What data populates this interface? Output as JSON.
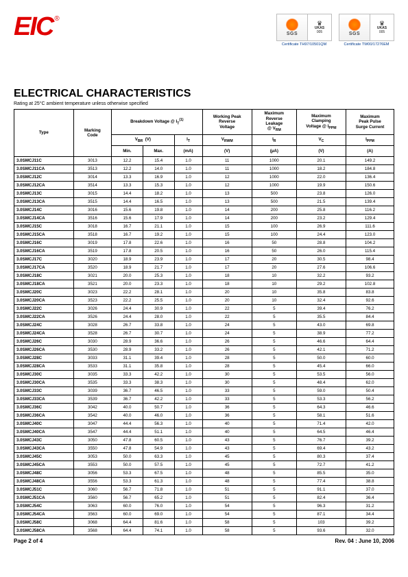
{
  "logo_text": "EIC",
  "cert1_label": "Certificate  TH97/10501QM",
  "cert2_label": "Certificate  TW00/17276EM",
  "sgs": "SGS",
  "ukas_brand": "UKAS",
  "ukas_sub": "MANAGEMENT SYSTEMS",
  "ukas_num": "005",
  "title": "ELECTRICAL CHARACTERISTICS",
  "subtitle": "Rating at 25°C ambient temperature unless otherwise specified",
  "headers": {
    "type": "Type",
    "marking": "Marking\nCode",
    "breakdown": "Breakdown Voltage @  I",
    "breakdown_sup": "(1)",
    "t_sub": "T",
    "vbr": "V",
    "vbr_sub": "BR",
    "vbr_unit": "(V)",
    "it": "I",
    "it_sub": "T",
    "min": "Min.",
    "max": "Max.",
    "ma": "(mA)",
    "wprv": "Working Peak\nReverse\nVoltage",
    "vrwm": "V",
    "vrwm_sub": "RWM",
    "v_unit": "(V)",
    "mrl": "Maximum\nReverse\nLeakage\n@ V",
    "mrl_sub": "RM",
    "ir": "I",
    "ir_sub": "R",
    "ua": "(µA)",
    "mcv": "Maximum\nClamping\nVoltage @ I",
    "mcv_sub": "PPM",
    "vc": "V",
    "vc_sub": "C",
    "mpps": "Maximum\nPeak Pulse\nSurge Current",
    "ippm": "I",
    "ippm_sub": "PPM",
    "a_unit": "(A)"
  },
  "rows": [
    {
      "type": "3.0SMCJ11C",
      "code": "3013",
      "min": "12.2",
      "max": "15.4",
      "it": "1.0",
      "vrwm": "11",
      "ir": "1000",
      "vc": "20.1",
      "ippm": "149.2"
    },
    {
      "type": "3.0SMCJ11CA",
      "code": "3513",
      "min": "12.2",
      "max": "14.0",
      "it": "1.0",
      "vrwm": "11",
      "ir": "1000",
      "vc": "18.2",
      "ippm": "184.8"
    },
    {
      "type": "3.0SMCJ12C",
      "code": "3014",
      "min": "13.3",
      "max": "16.9",
      "it": "1.0",
      "vrwm": "12",
      "ir": "1000",
      "vc": "22.0",
      "ippm": "136.4"
    },
    {
      "type": "3.0SMCJ12CA",
      "code": "3514",
      "min": "13.3",
      "max": "15.3",
      "it": "1.0",
      "vrwm": "12",
      "ir": "1000",
      "vc": "19.9",
      "ippm": "150.6"
    },
    {
      "type": "3.0SMCJ13C",
      "code": "3015",
      "min": "14.4",
      "max": "18.2",
      "it": "1.0",
      "vrwm": "13",
      "ir": "500",
      "vc": "23.8",
      "ippm": "126.0"
    },
    {
      "type": "3.0SMCJ13CA",
      "code": "3515",
      "min": "14.4",
      "max": "16.5",
      "it": "1.0",
      "vrwm": "13",
      "ir": "500",
      "vc": "21.5",
      "ippm": "139.4"
    },
    {
      "type": "3.0SMCJ14C",
      "code": "3016",
      "min": "15.6",
      "max": "19.8",
      "it": "1.0",
      "vrwm": "14",
      "ir": "200",
      "vc": "25.8",
      "ippm": "116.2"
    },
    {
      "type": "3.0SMCJ14CA",
      "code": "3516",
      "min": "15.6",
      "max": "17.9",
      "it": "1.0",
      "vrwm": "14",
      "ir": "200",
      "vc": "23.2",
      "ippm": "129.4"
    },
    {
      "type": "3.0SMCJ15C",
      "code": "3018",
      "min": "16.7",
      "max": "21.1",
      "it": "1.0",
      "vrwm": "15",
      "ir": "100",
      "vc": "26.9",
      "ippm": "111.6"
    },
    {
      "type": "3.0SMCJ15CA",
      "code": "3518",
      "min": "16.7",
      "max": "19.2",
      "it": "1.0",
      "vrwm": "15",
      "ir": "100",
      "vc": "24.4",
      "ippm": "123.0"
    },
    {
      "type": "3.0SMCJ16C",
      "code": "3019",
      "min": "17.8",
      "max": "22.6",
      "it": "1.0",
      "vrwm": "16",
      "ir": "50",
      "vc": "28.8",
      "ippm": "104.2"
    },
    {
      "type": "3.0SMCJ16CA",
      "code": "3519",
      "min": "17.8",
      "max": "20.5",
      "it": "1.0",
      "vrwm": "16",
      "ir": "50",
      "vc": "26.0",
      "ippm": "115.4"
    },
    {
      "type": "3.0SMCJ17C",
      "code": "3020",
      "min": "18.9",
      "max": "23.9",
      "it": "1.0",
      "vrwm": "17",
      "ir": "20",
      "vc": "30.5",
      "ippm": "98.4"
    },
    {
      "type": "3.0SMCJ17CA",
      "code": "3520",
      "min": "18.9",
      "max": "21.7",
      "it": "1.0",
      "vrwm": "17",
      "ir": "20",
      "vc": "27.6",
      "ippm": "106.6"
    },
    {
      "type": "3.0SMCJ18C",
      "code": "3021",
      "min": "20.0",
      "max": "25.3",
      "it": "1.0",
      "vrwm": "18",
      "ir": "10",
      "vc": "32.2",
      "ippm": "93.2"
    },
    {
      "type": "3.0SMCJ18CA",
      "code": "3521",
      "min": "20.0",
      "max": "23.3",
      "it": "1.0",
      "vrwm": "18",
      "ir": "10",
      "vc": "29.2",
      "ippm": "102.8"
    },
    {
      "type": "3.0SMCJ20C",
      "code": "3023",
      "min": "22.2",
      "max": "28.1",
      "it": "1.0",
      "vrwm": "20",
      "ir": "10",
      "vc": "35.8",
      "ippm": "83.8"
    },
    {
      "type": "3.0SMCJ20CA",
      "code": "3523",
      "min": "22.2",
      "max": "25.5",
      "it": "1.0",
      "vrwm": "20",
      "ir": "10",
      "vc": "32.4",
      "ippm": "92.6"
    },
    {
      "type": "3.0SMCJ22C",
      "code": "3026",
      "min": "24.4",
      "max": "30.9",
      "it": "1.0",
      "vrwm": "22",
      "ir": "5",
      "vc": "39.4",
      "ippm": "76.2"
    },
    {
      "type": "3.0SMCJ22CA",
      "code": "3526",
      "min": "24.4",
      "max": "28.0",
      "it": "1.0",
      "vrwm": "22",
      "ir": "5",
      "vc": "35.5",
      "ippm": "84.4"
    },
    {
      "type": "3.0SMCJ24C",
      "code": "3028",
      "min": "26.7",
      "max": "33.8",
      "it": "1.0",
      "vrwm": "24",
      "ir": "5",
      "vc": "43.0",
      "ippm": "69.8"
    },
    {
      "type": "3.0SMCJ24CA",
      "code": "3528",
      "min": "26.7",
      "max": "30.7",
      "it": "1.0",
      "vrwm": "24",
      "ir": "5",
      "vc": "38.9",
      "ippm": "77.2"
    },
    {
      "type": "3.0SMCJ26C",
      "code": "3030",
      "min": "28.9",
      "max": "36.6",
      "it": "1.0",
      "vrwm": "26",
      "ir": "5",
      "vc": "46.6",
      "ippm": "64.4"
    },
    {
      "type": "3.0SMCJ26CA",
      "code": "3530",
      "min": "28.9",
      "max": "33.2",
      "it": "1.0",
      "vrwm": "26",
      "ir": "5",
      "vc": "42.1",
      "ippm": "71.2"
    },
    {
      "type": "3.0SMCJ28C",
      "code": "3033",
      "min": "31.1",
      "max": "39.4",
      "it": "1.0",
      "vrwm": "28",
      "ir": "5",
      "vc": "50.0",
      "ippm": "60.0"
    },
    {
      "type": "3.0SMCJ28CA",
      "code": "3533",
      "min": "31.1",
      "max": "35.8",
      "it": "1.0",
      "vrwm": "28",
      "ir": "5",
      "vc": "45.4",
      "ippm": "66.0"
    },
    {
      "type": "3.0SMCJ30C",
      "code": "3035",
      "min": "33.3",
      "max": "42.2",
      "it": "1.0",
      "vrwm": "30",
      "ir": "5",
      "vc": "53.5",
      "ippm": "56.0"
    },
    {
      "type": "3.0SMCJ30CA",
      "code": "3535",
      "min": "33.3",
      "max": "38.3",
      "it": "1.0",
      "vrwm": "30",
      "ir": "5",
      "vc": "48.4",
      "ippm": "62.0"
    },
    {
      "type": "3.0SMCJ33C",
      "code": "3039",
      "min": "36.7",
      "max": "46.5",
      "it": "1.0",
      "vrwm": "33",
      "ir": "5",
      "vc": "59.0",
      "ippm": "50.4"
    },
    {
      "type": "3.0SMCJ33CA",
      "code": "3539",
      "min": "36.7",
      "max": "42.2",
      "it": "1.0",
      "vrwm": "33",
      "ir": "5",
      "vc": "53.3",
      "ippm": "56.2"
    },
    {
      "type": "3.0SMCJ36C",
      "code": "3042",
      "min": "40.0",
      "max": "50.7",
      "it": "1.0",
      "vrwm": "36",
      "ir": "5",
      "vc": "64.3",
      "ippm": "46.6"
    },
    {
      "type": "3.0SMCJ36CA",
      "code": "3542",
      "min": "40.0",
      "max": "46.0",
      "it": "1.0",
      "vrwm": "36",
      "ir": "5",
      "vc": "58.1",
      "ippm": "51.6"
    },
    {
      "type": "3.0SMCJ40C",
      "code": "3047",
      "min": "44.4",
      "max": "56.3",
      "it": "1.0",
      "vrwm": "40",
      "ir": "5",
      "vc": "71.4",
      "ippm": "42.0"
    },
    {
      "type": "3.0SMCJ40CA",
      "code": "3547",
      "min": "44.4",
      "max": "51.1",
      "it": "1.0",
      "vrwm": "40",
      "ir": "5",
      "vc": "64.5",
      "ippm": "46.4"
    },
    {
      "type": "3.0SMCJ43C",
      "code": "3050",
      "min": "47.8",
      "max": "60.5",
      "it": "1.0",
      "vrwm": "43",
      "ir": "5",
      "vc": "76.7",
      "ippm": "39.2"
    },
    {
      "type": "3.0SMCJ43CA",
      "code": "3550",
      "min": "47.8",
      "max": "54.9",
      "it": "1.0",
      "vrwm": "43",
      "ir": "5",
      "vc": "69.4",
      "ippm": "43.2"
    },
    {
      "type": "3.0SMCJ45C",
      "code": "3053",
      "min": "50.0",
      "max": "63.3",
      "it": "1.0",
      "vrwm": "45",
      "ir": "5",
      "vc": "80.3",
      "ippm": "37.4"
    },
    {
      "type": "3.0SMCJ45CA",
      "code": "3553",
      "min": "50.0",
      "max": "57.5",
      "it": "1.0",
      "vrwm": "45",
      "ir": "5",
      "vc": "72.7",
      "ippm": "41.2"
    },
    {
      "type": "3.0SMCJ48C",
      "code": "3056",
      "min": "53.3",
      "max": "67.5",
      "it": "1.0",
      "vrwm": "48",
      "ir": "5",
      "vc": "85.5",
      "ippm": "35.0"
    },
    {
      "type": "3.0SMCJ48CA",
      "code": "3556",
      "min": "53.3",
      "max": "61.3",
      "it": "1.0",
      "vrwm": "48",
      "ir": "5",
      "vc": "77.4",
      "ippm": "38.8"
    },
    {
      "type": "3.0SMCJ51C",
      "code": "3060",
      "min": "56.7",
      "max": "71.8",
      "it": "1.0",
      "vrwm": "51",
      "ir": "5",
      "vc": "91.1",
      "ippm": "37.0"
    },
    {
      "type": "3.0SMCJ51CA",
      "code": "3560",
      "min": "56.7",
      "max": "65.2",
      "it": "1.0",
      "vrwm": "51",
      "ir": "5",
      "vc": "82.4",
      "ippm": "36.4"
    },
    {
      "type": "3.0SMCJ54C",
      "code": "3063",
      "min": "60.0",
      "max": "76.0",
      "it": "1.0",
      "vrwm": "54",
      "ir": "5",
      "vc": "96.3",
      "ippm": "31.2"
    },
    {
      "type": "3.0SMCJ54CA",
      "code": "3563",
      "min": "60.0",
      "max": "69.0",
      "it": "1.0",
      "vrwm": "54",
      "ir": "5",
      "vc": "87.1",
      "ippm": "34.4"
    },
    {
      "type": "3.0SMCJ58C",
      "code": "3068",
      "min": "64.4",
      "max": "81.6",
      "it": "1.0",
      "vrwm": "58",
      "ir": "5",
      "vc": "103",
      "ippm": "39.2"
    },
    {
      "type": "3.0SMCJ58CA",
      "code": "3568",
      "min": "64.4",
      "max": "74.1",
      "it": "1.0",
      "vrwm": "58",
      "ir": "5",
      "vc": "93.6",
      "ippm": "32.0"
    }
  ],
  "footer_left": "Page 2 of 4",
  "footer_right": "Rev. 04 : June 10, 2006"
}
